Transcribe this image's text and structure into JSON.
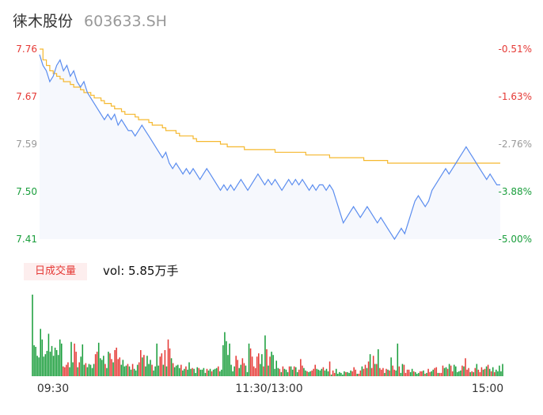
{
  "header": {
    "name": "徕木股份",
    "code": "603633.SH"
  },
  "volume_panel": {
    "badge": "日成交量",
    "text": "vol: 5.85万手"
  },
  "colors": {
    "up": "#e53935",
    "down": "#1a9e3c",
    "price_line": "#5b8def",
    "avg_line": "#f5b82e"
  },
  "chart_data": [
    {
      "type": "line",
      "y_ticks": [
        "7.76",
        "7.67",
        "7.59",
        "7.50",
        "7.41"
      ],
      "y_right_ticks": [
        "-0.51%",
        "-1.63%",
        "-2.76%",
        "-3.88%",
        "-5.00%"
      ],
      "x_ticks": [
        "09:30",
        "11:30/13:00",
        "15:00"
      ],
      "ylim": [
        7.41,
        7.76
      ],
      "series": [
        {
          "key": "price",
          "values": [
            7.75,
            7.73,
            7.72,
            7.7,
            7.71,
            7.73,
            7.74,
            7.72,
            7.73,
            7.71,
            7.72,
            7.7,
            7.69,
            7.7,
            7.68,
            7.67,
            7.66,
            7.65,
            7.64,
            7.63,
            7.64,
            7.63,
            7.64,
            7.62,
            7.63,
            7.62,
            7.61,
            7.61,
            7.6,
            7.61,
            7.62,
            7.61,
            7.6,
            7.59,
            7.58,
            7.57,
            7.56,
            7.57,
            7.55,
            7.54,
            7.55,
            7.54,
            7.53,
            7.54,
            7.53,
            7.54,
            7.53,
            7.52,
            7.53,
            7.54,
            7.53,
            7.52,
            7.51,
            7.5,
            7.51,
            7.5,
            7.51,
            7.5,
            7.51,
            7.52,
            7.51,
            7.5,
            7.51,
            7.52,
            7.53,
            7.52,
            7.51,
            7.52,
            7.51,
            7.52,
            7.51,
            7.5,
            7.51,
            7.52,
            7.51,
            7.52,
            7.51,
            7.52,
            7.51,
            7.5,
            7.51,
            7.5,
            7.51,
            7.51,
            7.5,
            7.51,
            7.5,
            7.48,
            7.46,
            7.44,
            7.45,
            7.46,
            7.47,
            7.46,
            7.45,
            7.46,
            7.47,
            7.46,
            7.45,
            7.44,
            7.45,
            7.44,
            7.43,
            7.42,
            7.41,
            7.42,
            7.43,
            7.42,
            7.44,
            7.46,
            7.48,
            7.49,
            7.48,
            7.47,
            7.48,
            7.5,
            7.51,
            7.52,
            7.53,
            7.54,
            7.53,
            7.54,
            7.55,
            7.56,
            7.57,
            7.58,
            7.57,
            7.56,
            7.55,
            7.54,
            7.53,
            7.52,
            7.53,
            7.52,
            7.51,
            7.51
          ]
        },
        {
          "key": "average",
          "values": [
            7.76,
            7.74,
            7.73,
            7.72,
            7.715,
            7.71,
            7.705,
            7.7,
            7.7,
            7.695,
            7.69,
            7.69,
            7.685,
            7.68,
            7.68,
            7.675,
            7.67,
            7.67,
            7.665,
            7.66,
            7.66,
            7.655,
            7.65,
            7.65,
            7.645,
            7.64,
            7.64,
            7.64,
            7.635,
            7.63,
            7.63,
            7.63,
            7.625,
            7.62,
            7.62,
            7.62,
            7.615,
            7.61,
            7.61,
            7.61,
            7.605,
            7.6,
            7.6,
            7.6,
            7.6,
            7.595,
            7.59,
            7.59,
            7.59,
            7.59,
            7.59,
            7.59,
            7.59,
            7.585,
            7.585,
            7.58,
            7.58,
            7.58,
            7.58,
            7.58,
            7.575,
            7.575,
            7.575,
            7.575,
            7.575,
            7.575,
            7.575,
            7.575,
            7.575,
            7.57,
            7.57,
            7.57,
            7.57,
            7.57,
            7.57,
            7.57,
            7.57,
            7.57,
            7.565,
            7.565,
            7.565,
            7.565,
            7.565,
            7.565,
            7.565,
            7.56,
            7.56,
            7.56,
            7.56,
            7.56,
            7.56,
            7.56,
            7.56,
            7.56,
            7.56,
            7.555,
            7.555,
            7.555,
            7.555,
            7.555,
            7.555,
            7.555,
            7.55,
            7.55,
            7.55,
            7.55,
            7.55,
            7.55,
            7.55,
            7.55,
            7.55,
            7.55,
            7.55,
            7.55,
            7.55,
            7.55,
            7.55,
            7.55,
            7.55,
            7.55,
            7.55,
            7.55,
            7.55,
            7.55,
            7.55,
            7.55,
            7.55,
            7.55,
            7.55,
            7.55,
            7.55,
            7.55,
            7.55,
            7.55,
            7.55,
            7.55
          ]
        }
      ]
    },
    {
      "type": "bar",
      "values": [
        100,
        38,
        36,
        25,
        23,
        58,
        45,
        24,
        27,
        31,
        52,
        30,
        37,
        25,
        35,
        32,
        26,
        45,
        40,
        12,
        11,
        14,
        17,
        11,
        42,
        17,
        40,
        30,
        11,
        17,
        24,
        39,
        14,
        16,
        11,
        15,
        14,
        10,
        15,
        27,
        30,
        41,
        22,
        20,
        25,
        15,
        10,
        30,
        28,
        21,
        17,
        32,
        35,
        21,
        23,
        14,
        20,
        12,
        13,
        15,
        12,
        8,
        15,
        9,
        7,
        14,
        17,
        32,
        23,
        26,
        12,
        25,
        15,
        20,
        14,
        7,
        12,
        40,
        13,
        24,
        28,
        14,
        32,
        12,
        45,
        34,
        22,
        16,
        11,
        13,
        14,
        10,
        14,
        7,
        9,
        12,
        8,
        17,
        9,
        10,
        9,
        4,
        11,
        10,
        8,
        8,
        10,
        4,
        9,
        7,
        9,
        6,
        8,
        9,
        10,
        12,
        6,
        8,
        38,
        54,
        43,
        26,
        40,
        14,
        6,
        12,
        25,
        20,
        10,
        14,
        22,
        16,
        13,
        5,
        40,
        34,
        24,
        12,
        10,
        24,
        28,
        15,
        27,
        12,
        50,
        33,
        13,
        24,
        30,
        26,
        9,
        19,
        10,
        9,
        5,
        12,
        9,
        8,
        5,
        12,
        12,
        8,
        12,
        11,
        5,
        8,
        21,
        13,
        10,
        7,
        6,
        5,
        6,
        7,
        9,
        14,
        9,
        8,
        7,
        9,
        11,
        7,
        9,
        6,
        18,
        2,
        7,
        4,
        9,
        3,
        5,
        4,
        2,
        6,
        5,
        5,
        4,
        7,
        6,
        11,
        8,
        3,
        3,
        7,
        12,
        9,
        14,
        10,
        18,
        27,
        10,
        25,
        15,
        15,
        33,
        10,
        8,
        10,
        4,
        9,
        8,
        7,
        23,
        13,
        8,
        7,
        40,
        12,
        4,
        15,
        14,
        4,
        8,
        8,
        5,
        9,
        6,
        5,
        3,
        4,
        6,
        6,
        7,
        3,
        4,
        9,
        5,
        6,
        8,
        10,
        11,
        4,
        4,
        4,
        13,
        10,
        11,
        9,
        15,
        13,
        6,
        14,
        12,
        5,
        6,
        7,
        13,
        12,
        22,
        8,
        10,
        5,
        6,
        5,
        10,
        15,
        8,
        5,
        11,
        8,
        9,
        12,
        14,
        9,
        6,
        11,
        5,
        8,
        6,
        13,
        6,
        15
      ],
      "up": [
        0,
        0,
        0,
        0,
        0,
        0,
        0,
        0,
        0,
        0,
        0,
        0,
        0,
        0,
        0,
        0,
        0,
        0,
        0,
        1,
        1,
        1,
        1,
        0,
        0,
        0,
        1,
        1,
        0,
        1,
        0,
        0,
        0,
        1,
        0,
        0,
        0,
        0,
        0,
        1,
        1,
        0,
        0,
        0,
        0,
        1,
        0,
        0,
        1,
        1,
        0,
        1,
        1,
        1,
        1,
        0,
        0,
        0,
        0,
        1,
        0,
        0,
        1,
        0,
        0,
        0,
        1,
        1,
        0,
        1,
        0,
        0,
        0,
        0,
        1,
        0,
        0,
        0,
        0,
        1,
        1,
        0,
        1,
        0,
        1,
        1,
        0,
        1,
        0,
        0,
        0,
        0,
        1,
        0,
        0,
        1,
        0,
        0,
        0,
        1,
        0,
        0,
        0,
        1,
        0,
        0,
        0,
        0,
        1,
        0,
        0,
        1,
        0,
        0,
        0,
        1,
        0,
        0,
        0,
        0,
        0,
        0,
        0,
        0,
        0,
        0,
        1,
        1,
        0,
        0,
        1,
        1,
        0,
        0,
        0,
        1,
        1,
        1,
        1,
        1,
        1,
        0,
        0,
        1,
        0,
        1,
        0,
        1,
        0,
        0,
        0,
        0,
        0,
        1,
        0,
        1,
        0,
        0,
        0,
        1,
        0,
        0,
        1,
        0,
        0,
        1,
        1,
        1,
        0,
        0,
        1,
        0,
        0,
        1,
        1,
        1,
        0,
        0,
        0,
        0,
        1,
        0,
        0,
        0,
        1,
        0,
        1,
        1,
        0,
        0,
        0,
        0,
        0,
        0,
        1,
        0,
        0,
        0,
        1,
        1,
        1,
        0,
        1,
        1,
        0,
        1,
        1,
        0,
        1,
        0,
        1,
        1,
        0,
        1,
        0,
        1,
        1,
        1,
        0,
        1,
        0,
        1,
        0,
        1,
        1,
        0,
        0,
        1,
        0,
        0,
        1,
        1,
        1,
        1,
        0,
        0,
        1,
        0,
        0,
        0,
        1,
        1,
        0,
        1,
        0,
        1,
        1,
        0,
        0,
        1,
        1,
        0,
        1,
        1,
        1,
        0,
        0,
        1,
        0,
        1,
        1,
        0,
        0,
        0,
        0,
        0,
        1,
        0,
        1,
        1,
        1,
        0,
        1,
        0,
        1,
        0,
        1,
        1,
        1,
        0,
        1,
        0,
        1,
        0,
        1,
        0,
        1,
        0,
        0,
        0,
        0,
        0,
        1
      ]
    }
  ]
}
